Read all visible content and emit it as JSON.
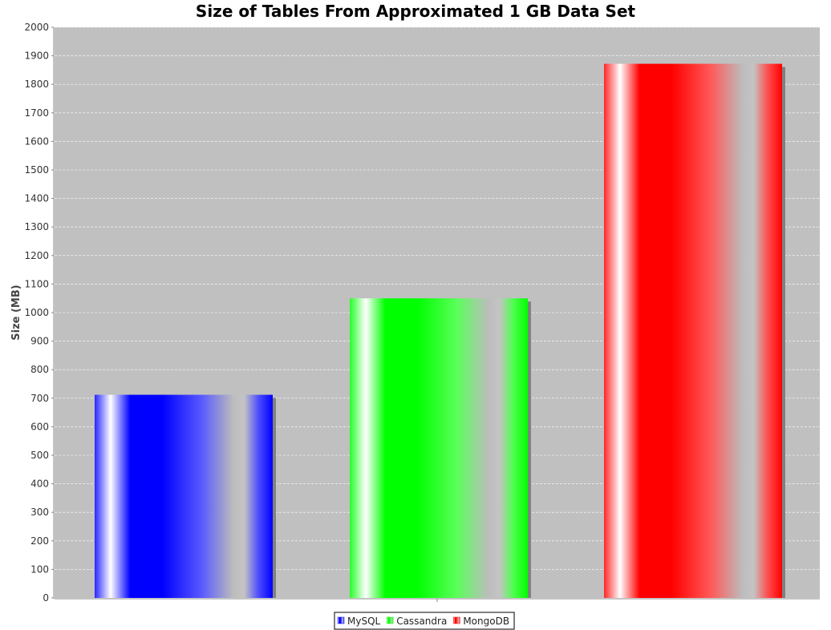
{
  "chart_data": {
    "type": "bar",
    "title": "Size of Tables From Approximated 1 GB Data Set",
    "ylabel": "Size (MB)",
    "xlabel": "",
    "ylim": [
      0,
      2000
    ],
    "ytick_step": 100,
    "grid": true,
    "legend_placement": "bottom",
    "categories": [
      ""
    ],
    "series": [
      {
        "name": "MySQL",
        "values": [
          712
        ],
        "color": "#0000ff"
      },
      {
        "name": "Cassandra",
        "values": [
          1050
        ],
        "color": "#00ff00"
      },
      {
        "name": "MongoDB",
        "values": [
          1872
        ],
        "color": "#ff0000"
      }
    ]
  },
  "colors": {
    "plot_background": "#c0c0c0",
    "gridline": "#ffffff"
  }
}
